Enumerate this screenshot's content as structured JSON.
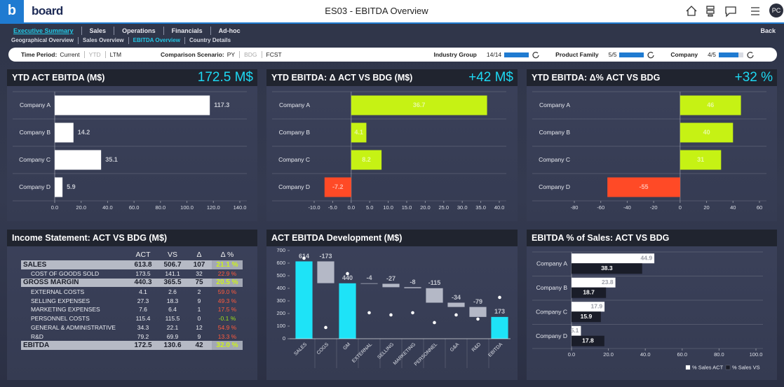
{
  "header": {
    "logo_mark": "b",
    "logo": "board",
    "title": "ES03 - EBITDA Overview",
    "user": "PC"
  },
  "nav": {
    "tabs": [
      "Executive Summary",
      "Sales",
      "Operations",
      "Financials",
      "Ad-hoc"
    ],
    "active_tab": 0,
    "back": "Back",
    "subtabs": [
      "Geographical Overview",
      "Sales Overview",
      "EBITDA Overview",
      "Country Details"
    ],
    "active_subtab": 2
  },
  "filters": {
    "time_period": {
      "label": "Time Period:",
      "options": [
        "Current",
        "YTD",
        "LTM"
      ],
      "disabled": [
        1
      ]
    },
    "comparison": {
      "label": "Comparison Scenario:",
      "options": [
        "PY",
        "BDG",
        "FCST"
      ],
      "disabled": [
        1
      ]
    },
    "selectors": [
      {
        "label": "Industry Group",
        "selected": 14,
        "total": 14
      },
      {
        "label": "Product Family",
        "selected": 5,
        "total": 5
      },
      {
        "label": "Company",
        "selected": 4,
        "total": 5
      }
    ]
  },
  "table": {
    "title": "Income Statement: ACT VS BDG (M$)",
    "columns": [
      "ACT",
      "VS",
      "Δ",
      "Δ %"
    ],
    "rows": [
      {
        "kind": "total",
        "pct_color": "#cdf21a",
        "cells": [
          "SALES",
          613.8,
          506.7,
          107,
          "21.1 %"
        ]
      },
      {
        "kind": "detail",
        "pct_color": "#ff5a3c",
        "cells": [
          "COST OF GOODS SOLD",
          173.5,
          141.1,
          32,
          "22.9 %"
        ]
      },
      {
        "kind": "total",
        "pct_color": "#cdf21a",
        "cells": [
          "GROSS MARGIN",
          440.3,
          365.5,
          75,
          "20.5 %"
        ]
      },
      {
        "kind": "detail",
        "pct_color": "#ff5a3c",
        "cells": [
          "EXTERNAL COSTS",
          4.1,
          2.6,
          2,
          "59.0 %"
        ]
      },
      {
        "kind": "detail",
        "pct_color": "#ff5a3c",
        "cells": [
          "SELLING EXPENSES",
          27.3,
          18.3,
          9,
          "49.3 %"
        ]
      },
      {
        "kind": "detail",
        "pct_color": "#ff5a3c",
        "cells": [
          "MARKETING EXPENSES",
          7.6,
          6.4,
          1,
          "17.5 %"
        ]
      },
      {
        "kind": "detail",
        "pct_color": "#9be11a",
        "cells": [
          "PERSONNEL COSTS",
          115.4,
          115.5,
          0,
          "-0.1 %"
        ]
      },
      {
        "kind": "detail",
        "pct_color": "#ff5a3c",
        "cells": [
          "GENERAL & ADMINISTRATIVE",
          34.3,
          22.1,
          12,
          "54.9 %"
        ]
      },
      {
        "kind": "detail",
        "pct_color": "#ff5a3c",
        "cells": [
          "R&D",
          79.2,
          69.9,
          9,
          "13.3 %"
        ]
      },
      {
        "kind": "total",
        "pct_color": "#cdf21a",
        "cells": [
          "EBITDA",
          172.5,
          130.6,
          42,
          "32.0 %"
        ]
      }
    ]
  },
  "chart_data": [
    {
      "type": "hbar",
      "title": "YTD ACT EBITDA (M$)",
      "kpi": "172.5 M$",
      "categories": [
        "Company A",
        "Company B",
        "Company C",
        "Company D"
      ],
      "values": [
        117.3,
        14.2,
        35.1,
        5.9
      ],
      "color": "#ffffff",
      "label_position": "outside",
      "xlim": [
        0,
        140
      ],
      "xticks": [
        {
          "value": 0,
          "label": "0.0"
        },
        {
          "value": 20,
          "label": "20.0"
        },
        {
          "value": 40,
          "label": "40.0"
        },
        {
          "value": 60,
          "label": "60.0"
        },
        {
          "value": 80,
          "label": "80.0"
        },
        {
          "value": 100,
          "label": "100.0"
        },
        {
          "value": 120,
          "label": "120.0"
        },
        {
          "value": 140,
          "label": "140.0"
        }
      ]
    },
    {
      "type": "hbar",
      "title": "YTD EBITDA: Δ ACT VS BDG (M$)",
      "kpi": "+42 M$",
      "categories": [
        "Company A",
        "Company B",
        "Company C",
        "Company D"
      ],
      "values": [
        36.7,
        4.1,
        8.2,
        -7.2
      ],
      "color": "#c6f214",
      "negative_color": "#ff4a26",
      "label_position": "inside",
      "xlim": [
        -10,
        40
      ],
      "xticks": [
        {
          "value": -10,
          "label": "-10.0"
        },
        {
          "value": -5,
          "label": "-5.0"
        },
        {
          "value": 0,
          "label": "0.0"
        },
        {
          "value": 5,
          "label": "5.0"
        },
        {
          "value": 10,
          "label": "10.0"
        },
        {
          "value": 15,
          "label": "15.0"
        },
        {
          "value": 20,
          "label": "20.0"
        },
        {
          "value": 25,
          "label": "25.0"
        },
        {
          "value": 30,
          "label": "30.0"
        },
        {
          "value": 35,
          "label": "35.0"
        },
        {
          "value": 40,
          "label": "40.0"
        }
      ]
    },
    {
      "type": "hbar",
      "title": "YTD EBITDA: Δ% ACT VS BDG",
      "kpi": "+32 %",
      "categories": [
        "Company A",
        "Company B",
        "Company C",
        "Company D"
      ],
      "values": [
        46,
        40,
        31,
        -55
      ],
      "color": "#c6f214",
      "negative_color": "#ff4a26",
      "label_position": "inside",
      "xlim": [
        -80,
        60
      ],
      "xticks": [
        -80,
        -60,
        -40,
        -20,
        0,
        20,
        40,
        60
      ]
    },
    {
      "type": "waterfall",
      "title": "ACT EBITDA Development (M$)",
      "categories": [
        "SALES",
        "COGS",
        "GM",
        "EXTERNAL",
        "SELLING",
        "MARKETING",
        "PERSONNEL",
        "G&A",
        "R&D",
        "EBITDA"
      ],
      "values": [
        614,
        -173,
        440,
        -4,
        -27,
        -8,
        -115,
        -34,
        -79,
        173
      ],
      "totals": [
        0,
        2,
        9
      ],
      "dots": [
        639,
        89,
        517,
        206,
        189,
        206,
        128,
        189,
        156,
        328
      ],
      "color": "#1ee3f7",
      "change_color": "#b4b8c6",
      "ylim": [
        0,
        700
      ],
      "yticks": [
        0,
        100,
        200,
        300,
        400,
        500,
        600,
        700
      ]
    },
    {
      "type": "grouped_hbar",
      "title": "EBITDA % of Sales: ACT VS BDG",
      "categories": [
        "Company A",
        "Company B",
        "Company C",
        "Company D"
      ],
      "series": [
        {
          "name": "% Sales ACT",
          "color": "#ffffff",
          "values": [
            44.9,
            23.8,
            17.9,
            5.1
          ]
        },
        {
          "name": "% Sales VS",
          "color": "#1a1d29",
          "values": [
            38.3,
            18.7,
            15.9,
            17.8
          ]
        }
      ],
      "xlim": [
        0,
        100
      ],
      "xticks": [
        {
          "value": 0,
          "label": "0.0"
        },
        {
          "value": 20,
          "label": "20.0"
        },
        {
          "value": 40,
          "label": "40.0"
        },
        {
          "value": 60,
          "label": "60.0"
        },
        {
          "value": 80,
          "label": "80.0"
        },
        {
          "value": 100,
          "label": "100.0"
        }
      ],
      "legend": "bottom-right"
    }
  ]
}
